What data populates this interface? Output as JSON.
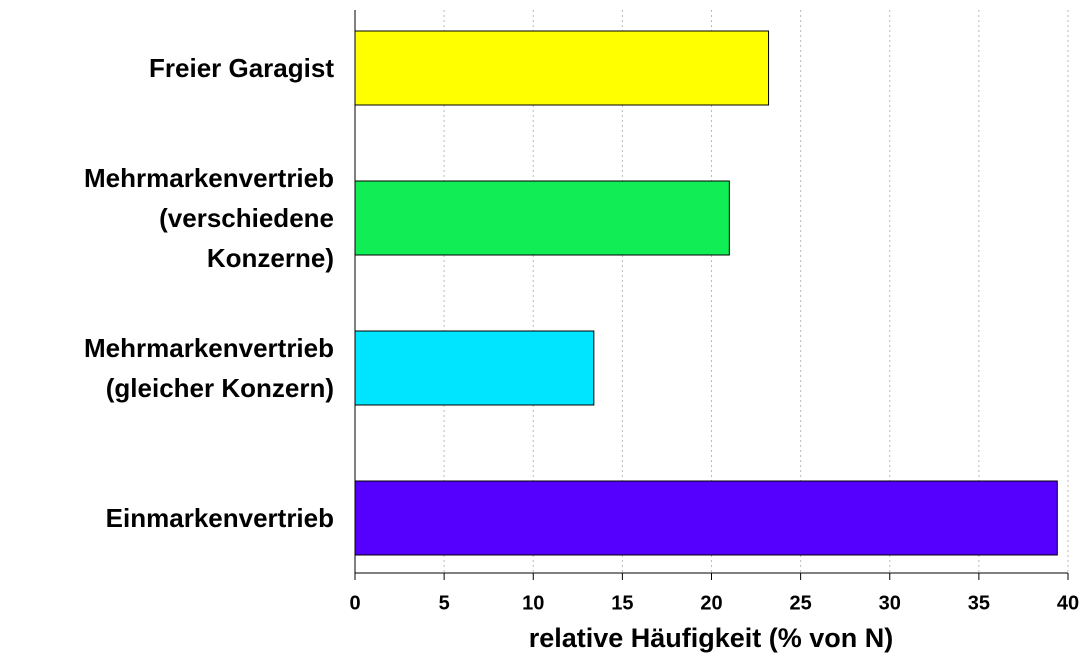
{
  "chart_data": {
    "type": "barh",
    "categories": [
      "Freier Garagist",
      "Mehrmarkenvertrieb\n(verschiedene\nKonzerne)",
      "Mehrmarkenvertrieb\n(gleicher Konzern)",
      "Einmarkenvertrieb"
    ],
    "values": [
      23.2,
      21.0,
      13.4,
      39.4
    ],
    "colors": [
      "#ffff00",
      "#11ee55",
      "#00e5ff",
      "#5500ff"
    ],
    "xlabel": "relative Häufigkeit (% von N)",
    "xlim": [
      0,
      40
    ],
    "xticks": [
      0,
      5,
      10,
      15,
      20,
      25,
      30,
      35,
      40
    ],
    "grid": true
  }
}
